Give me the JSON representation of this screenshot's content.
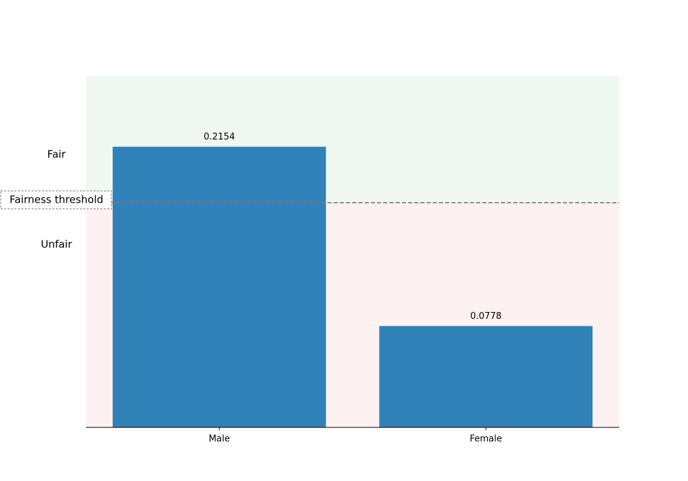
{
  "chart_data": {
    "type": "bar",
    "categories": [
      "Male",
      "Female"
    ],
    "values": [
      0.2154,
      0.0778
    ],
    "color": "#1f77b4",
    "ylim": [
      0,
      0.27
    ],
    "threshold": 0.1725,
    "threshold_label": "Fairness threshold",
    "above_label": "Fair",
    "below_label": "Unfair",
    "above_color": "#f0f8f1",
    "below_color": "#fdf1f1"
  }
}
